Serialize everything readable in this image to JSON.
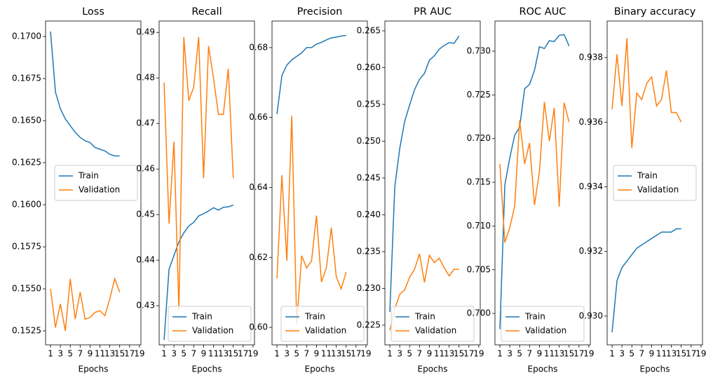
{
  "chart_data": [
    {
      "type": "line",
      "title": "Loss",
      "xlabel": "Epochs",
      "legend": "center right",
      "x": [
        1,
        2,
        3,
        4,
        5,
        6,
        7,
        8,
        9,
        10,
        11,
        12,
        13,
        14,
        15
      ],
      "xlim": [
        0,
        19.3
      ],
      "xticks": [
        1,
        3,
        5,
        7,
        9,
        11,
        13,
        15,
        17,
        19
      ],
      "ylim": [
        0.15167,
        0.17092
      ],
      "yticks": [
        {
          "value": 0.1525,
          "label": "0.1525"
        },
        {
          "value": 0.155,
          "label": "0.1550"
        },
        {
          "value": 0.1575,
          "label": "0.1575"
        },
        {
          "value": 0.16,
          "label": "0.1600"
        },
        {
          "value": 0.1625,
          "label": "0.1625"
        },
        {
          "value": 0.165,
          "label": "0.1650"
        },
        {
          "value": 0.1675,
          "label": "0.1675"
        },
        {
          "value": 0.17,
          "label": "0.1700"
        }
      ],
      "series": [
        {
          "name": "Train",
          "color": "#1f77b4",
          "values": [
            0.1703,
            0.1667,
            0.1657,
            0.1651,
            0.1647,
            0.1643,
            0.164,
            0.1638,
            0.1637,
            0.1634,
            0.1633,
            0.1632,
            0.163,
            0.1629,
            0.1629
          ]
        },
        {
          "name": "Validation",
          "color": "#ff7f0e",
          "values": [
            0.155,
            0.1527,
            0.1541,
            0.1525,
            0.1556,
            0.1532,
            0.1548,
            0.1532,
            0.1533,
            0.1536,
            0.1537,
            0.1534,
            0.1544,
            0.1556,
            0.1548
          ]
        }
      ]
    },
    {
      "type": "line",
      "title": "Recall",
      "xlabel": "Epochs",
      "legend": "lower right",
      "x": [
        1,
        2,
        3,
        4,
        5,
        6,
        7,
        8,
        9,
        10,
        11,
        12,
        13,
        14,
        15
      ],
      "xlim": [
        0,
        19.3
      ],
      "xticks": [
        1,
        3,
        5,
        7,
        9,
        11,
        13,
        15,
        17,
        19
      ],
      "ylim": [
        0.4214,
        0.4925
      ],
      "yticks": [
        0.43,
        0.44,
        0.45,
        0.46,
        0.47,
        0.48,
        0.49
      ],
      "series": [
        {
          "name": "Train",
          "color": "#1f77b4",
          "values": [
            0.4225,
            0.438,
            0.441,
            0.444,
            0.446,
            0.4475,
            0.4483,
            0.4497,
            0.4502,
            0.4508,
            0.4515,
            0.451,
            0.4516,
            0.4517,
            0.4521
          ]
        },
        {
          "name": "Validation",
          "color": "#ff7f0e",
          "values": [
            0.479,
            0.448,
            0.466,
            0.429,
            0.489,
            0.475,
            0.478,
            0.489,
            0.458,
            0.487,
            0.48,
            0.472,
            0.472,
            0.482,
            0.458
          ]
        }
      ]
    },
    {
      "type": "line",
      "title": "Precision",
      "xlabel": "Epochs",
      "legend": "lower right",
      "x": [
        1,
        2,
        3,
        4,
        5,
        6,
        7,
        8,
        9,
        10,
        11,
        12,
        13,
        14,
        15
      ],
      "xlim": [
        0,
        19.3
      ],
      "xticks": [
        1,
        3,
        5,
        7,
        9,
        11,
        13,
        15,
        17,
        19
      ],
      "ylim": [
        0.595,
        0.6876
      ],
      "yticks": [
        {
          "value": 0.6,
          "label": "0.60"
        },
        0.62,
        0.64,
        0.66,
        0.68
      ],
      "series": [
        {
          "name": "Train",
          "color": "#1f77b4",
          "values": [
            0.661,
            0.672,
            0.675,
            0.6765,
            0.6775,
            0.6785,
            0.68,
            0.68,
            0.681,
            0.6815,
            0.6822,
            0.6828,
            0.683,
            0.6833,
            0.6835
          ]
        },
        {
          "name": "Validation",
          "color": "#ff7f0e",
          "values": [
            0.614,
            0.6435,
            0.619,
            0.6605,
            0.601,
            0.6205,
            0.617,
            0.619,
            0.632,
            0.613,
            0.617,
            0.6285,
            0.6145,
            0.611,
            0.6158
          ]
        }
      ]
    },
    {
      "type": "line",
      "title": "PR AUC",
      "xlabel": "Epochs",
      "legend": "lower center",
      "x": [
        1,
        2,
        3,
        4,
        5,
        6,
        7,
        8,
        9,
        10,
        11,
        12,
        13,
        14,
        15
      ],
      "xlim": [
        0,
        19.3
      ],
      "xticks": [
        1,
        3,
        5,
        7,
        9,
        11,
        13,
        15,
        17,
        19
      ],
      "ylim": [
        0.22233,
        0.26633
      ],
      "yticks": [
        0.225,
        {
          "value": 0.23,
          "label": "0.230"
        },
        0.235,
        {
          "value": 0.24,
          "label": "0.240"
        },
        0.245,
        {
          "value": 0.25,
          "label": "0.250"
        },
        0.255,
        {
          "value": 0.26,
          "label": "0.260"
        },
        0.265
      ],
      "series": [
        {
          "name": "Train",
          "color": "#1f77b4",
          "values": [
            0.2268,
            0.2438,
            0.249,
            0.2527,
            0.2549,
            0.257,
            0.2584,
            0.2592,
            0.261,
            0.2616,
            0.2625,
            0.263,
            0.2634,
            0.2633,
            0.2643
          ]
        },
        {
          "name": "Validation",
          "color": "#ff7f0e",
          "values": [
            0.2243,
            0.2272,
            0.2292,
            0.2298,
            0.2315,
            0.2326,
            0.2347,
            0.2308,
            0.2345,
            0.2335,
            0.2341,
            0.2328,
            0.2317,
            0.2326,
            0.2326
          ]
        }
      ]
    },
    {
      "type": "line",
      "title": "ROC AUC",
      "xlabel": "Epochs",
      "legend": "lower center",
      "x": [
        1,
        2,
        3,
        4,
        5,
        6,
        7,
        8,
        9,
        10,
        11,
        12,
        13,
        14,
        15
      ],
      "xlim": [
        0,
        19.3
      ],
      "xticks": [
        1,
        3,
        5,
        7,
        9,
        11,
        13,
        15,
        17,
        19
      ],
      "ylim": [
        0.6964,
        0.73345
      ],
      "yticks": [
        {
          "value": 0.7,
          "label": "0.700"
        },
        0.705,
        {
          "value": 0.71,
          "label": "0.710"
        },
        0.715,
        {
          "value": 0.72,
          "label": "0.720"
        },
        0.725,
        {
          "value": 0.73,
          "label": "0.730"
        }
      ],
      "series": [
        {
          "name": "Train",
          "color": "#1f77b4",
          "values": [
            0.6982,
            0.7147,
            0.7178,
            0.7204,
            0.7213,
            0.7257,
            0.7262,
            0.7278,
            0.7305,
            0.7303,
            0.7312,
            0.7311,
            0.7318,
            0.7319,
            0.7306
          ]
        },
        {
          "name": "Validation",
          "color": "#ff7f0e",
          "values": [
            0.7171,
            0.7081,
            0.7098,
            0.7123,
            0.7221,
            0.7171,
            0.7195,
            0.7124,
            0.7162,
            0.7242,
            0.7197,
            0.7235,
            0.7122,
            0.7241,
            0.7219
          ]
        }
      ]
    },
    {
      "type": "line",
      "title": "Binary accuracy",
      "xlabel": "Epochs",
      "legend": "center",
      "x": [
        1,
        2,
        3,
        4,
        5,
        6,
        7,
        8,
        9,
        10,
        11,
        12,
        13,
        14,
        15
      ],
      "xlim": [
        0,
        19.3
      ],
      "xticks": [
        1,
        3,
        5,
        7,
        9,
        11,
        13,
        15,
        17,
        19
      ],
      "ylim": [
        0.92911,
        0.93913
      ],
      "yticks": [
        {
          "value": 0.93,
          "label": "0.930"
        },
        0.932,
        0.934,
        0.936,
        0.938
      ],
      "series": [
        {
          "name": "Train",
          "color": "#1f77b4",
          "values": [
            0.9295,
            0.9311,
            0.9315,
            0.9317,
            0.9319,
            0.9321,
            0.9322,
            0.9323,
            0.9324,
            0.9325,
            0.9326,
            0.9326,
            0.9326,
            0.9327,
            0.9327
          ]
        },
        {
          "name": "Validation",
          "color": "#ff7f0e",
          "values": [
            0.9364,
            0.9381,
            0.9365,
            0.9386,
            0.9352,
            0.9369,
            0.9367,
            0.9372,
            0.9374,
            0.9365,
            0.9367,
            0.9376,
            0.9363,
            0.9363,
            0.936
          ]
        }
      ]
    }
  ]
}
